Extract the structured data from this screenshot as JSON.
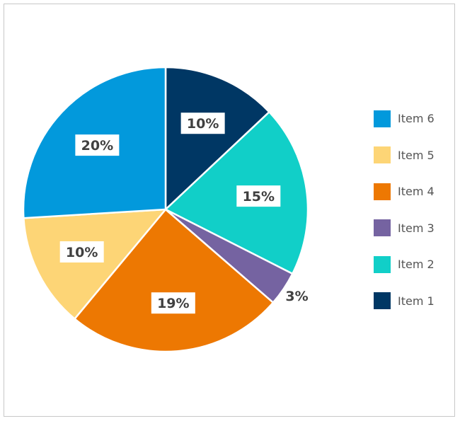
{
  "chart_data": {
    "type": "pie",
    "title": "",
    "slices": [
      {
        "name": "Item 1",
        "value": 10,
        "label": "10%",
        "color": "#003764"
      },
      {
        "name": "Item 2",
        "value": 15,
        "label": "15%",
        "color": "#11cfc8"
      },
      {
        "name": "Item 3",
        "value": 3,
        "label": "3%",
        "color": "#7563a1"
      },
      {
        "name": "Item 4",
        "value": 19,
        "label": "19%",
        "color": "#ed7802"
      },
      {
        "name": "Item 5",
        "value": 10,
        "label": "10%",
        "color": "#fdd576"
      },
      {
        "name": "Item 6",
        "value": 20,
        "label": "20%",
        "color": "#0299dc"
      }
    ],
    "legend": {
      "placement": "right",
      "order": [
        "Item 6",
        "Item 5",
        "Item 4",
        "Item 3",
        "Item 2",
        "Item 1"
      ]
    }
  }
}
